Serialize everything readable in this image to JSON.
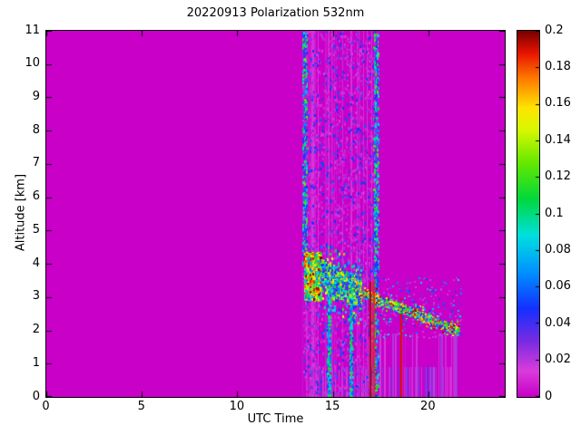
{
  "chart_data": {
    "type": "heatmap",
    "title": "20220913 Polarization 532nm",
    "xlabel": "UTC Time",
    "ylabel": "Altitude [km]",
    "xlim": [
      0,
      24
    ],
    "ylim": [
      0,
      11
    ],
    "x_ticks": [
      0,
      5,
      10,
      15,
      20
    ],
    "y_ticks": [
      0,
      1,
      2,
      3,
      4,
      5,
      6,
      7,
      8,
      9,
      10,
      11
    ],
    "grid": false,
    "legend_position": "none",
    "colorbar": {
      "min": 0,
      "max": 0.2,
      "ticks": [
        0,
        0.02,
        0.04,
        0.06,
        0.08,
        0.1,
        0.12,
        0.14,
        0.16,
        0.18,
        0.2
      ],
      "position": "right"
    },
    "background_value": 0,
    "colormap_stops": [
      {
        "t": 0.0,
        "color": "#C800C8"
      },
      {
        "t": 0.07,
        "color": "#DA3CDC"
      },
      {
        "t": 0.15,
        "color": "#7B2BE2"
      },
      {
        "t": 0.24,
        "color": "#1430FF"
      },
      {
        "t": 0.34,
        "color": "#0090FF"
      },
      {
        "t": 0.44,
        "color": "#00E0E0"
      },
      {
        "t": 0.54,
        "color": "#00D83C"
      },
      {
        "t": 0.64,
        "color": "#66E800"
      },
      {
        "t": 0.73,
        "color": "#D8F800"
      },
      {
        "t": 0.79,
        "color": "#FFE400"
      },
      {
        "t": 0.87,
        "color": "#FF7A00"
      },
      {
        "t": 0.94,
        "color": "#E81400"
      },
      {
        "t": 1.0,
        "color": "#780000"
      }
    ],
    "noise_seed": 7,
    "features": [
      {
        "type": "stripes",
        "x": [
          13.4,
          17.35
        ],
        "alt": [
          0,
          11
        ],
        "step": 0.045,
        "p_colored": 0.5,
        "value": [
          0.004,
          0.016
        ],
        "note": "lighter vertical striping in measurement noise band"
      },
      {
        "type": "stripes",
        "x": [
          13.5,
          21.55
        ],
        "alt": [
          0,
          0.9
        ],
        "step": 0.055,
        "p_colored": 0.45,
        "value": [
          0.006,
          0.035
        ],
        "note": "near-surface striped returns"
      },
      {
        "type": "stripes",
        "x": [
          16.5,
          21.55
        ],
        "alt": [
          0,
          1.9
        ],
        "step": 0.06,
        "p_colored": 0.3,
        "value": [
          0.005,
          0.025
        ],
        "note": "faint stripes below descending layer"
      },
      {
        "type": "speckle",
        "x": [
          13.4,
          17.35
        ],
        "alt": [
          0,
          11
        ],
        "count": 2200,
        "value": [
          0.005,
          0.06
        ],
        "bias": 2.5,
        "dot": [
          2,
          3
        ],
        "note": "speckle noise band 13.4-17.3 UTC full column"
      },
      {
        "type": "speckle",
        "x": [
          13.4,
          13.62
        ],
        "alt": [
          4,
          11
        ],
        "count": 520,
        "value": [
          0.02,
          0.13
        ],
        "bias": 1.5,
        "dot": [
          2,
          3
        ],
        "note": "dense left edge of noise band"
      },
      {
        "type": "speckle",
        "x": [
          17.12,
          17.35
        ],
        "alt": [
          0,
          11
        ],
        "count": 620,
        "value": [
          0.02,
          0.13
        ],
        "bias": 1.5,
        "dot": [
          2,
          3
        ],
        "note": "dense right edge of noise band"
      },
      {
        "type": "speckle",
        "x": [
          13.5,
          14.35
        ],
        "alt": [
          2.95,
          4.35
        ],
        "count": 2600,
        "value": [
          0.06,
          0.2
        ],
        "bias": 0.9,
        "dot": [
          2,
          3
        ],
        "note": "strong depolarizing aerosol patch ~13.5-14.3 UTC, 3-4.3 km"
      },
      {
        "type": "speckle",
        "x": [
          14.9,
          15.35
        ],
        "alt": [
          3.0,
          3.6
        ],
        "count": 700,
        "value": [
          0.06,
          0.16
        ],
        "bias": 1.0,
        "dot": [
          2,
          3
        ]
      },
      {
        "type": "speckle",
        "x": [
          15.75,
          16.35
        ],
        "alt": [
          2.85,
          3.5
        ],
        "count": 900,
        "value": [
          0.06,
          0.18
        ],
        "bias": 1.0,
        "dot": [
          2,
          3
        ]
      },
      {
        "type": "layer",
        "x": [
          14.35,
          16.45
        ],
        "alt_start": 3.7,
        "alt_end": 3.15,
        "half_thickness": 0.45,
        "count": 1500,
        "value": [
          0.03,
          0.17
        ],
        "bias": 1.4,
        "dot": [
          2,
          3
        ],
        "note": "aerosol layer descending 3.7 to 3.1 km"
      },
      {
        "type": "layer",
        "x": [
          16.45,
          21.6
        ],
        "alt_start": 3.15,
        "alt_end": 2.0,
        "half_thickness": 0.14,
        "count": 900,
        "value": [
          0.02,
          0.2
        ],
        "bias": 0.8,
        "dot": [
          2,
          2
        ],
        "note": "thin layer descending from ~3.1 km at 16.5 UTC to ~2 km at 21.6 UTC"
      },
      {
        "type": "speckle",
        "x": [
          17.35,
          21.7
        ],
        "alt": [
          1.8,
          3.6
        ],
        "count": 220,
        "value": [
          0.01,
          0.1
        ],
        "bias": 2.2,
        "dot": [
          2,
          2
        ]
      },
      {
        "type": "speckle",
        "x": [
          14.7,
          14.85
        ],
        "alt": [
          0,
          3.2
        ],
        "count": 200,
        "value": [
          0.05,
          0.12
        ],
        "bias": 1.2,
        "dot": [
          2,
          3
        ]
      },
      {
        "type": "speckle",
        "x": [
          15.85,
          16.0
        ],
        "alt": [
          0,
          3.0
        ],
        "count": 150,
        "value": [
          0.05,
          0.12
        ],
        "bias": 1.2,
        "dot": [
          2,
          3
        ]
      },
      {
        "type": "vline",
        "x": 16.95,
        "alt": [
          0,
          3.45
        ],
        "value": 0.195,
        "width": 2,
        "note": "dark red column"
      },
      {
        "type": "vline",
        "x": 17.18,
        "alt": [
          0,
          3.55
        ],
        "value": 0.185,
        "width": 2,
        "note": "dark red column"
      },
      {
        "type": "vline",
        "x": 18.58,
        "alt": [
          0,
          2.5
        ],
        "value": 0.19,
        "width": 2,
        "note": "dark red column"
      }
    ]
  }
}
